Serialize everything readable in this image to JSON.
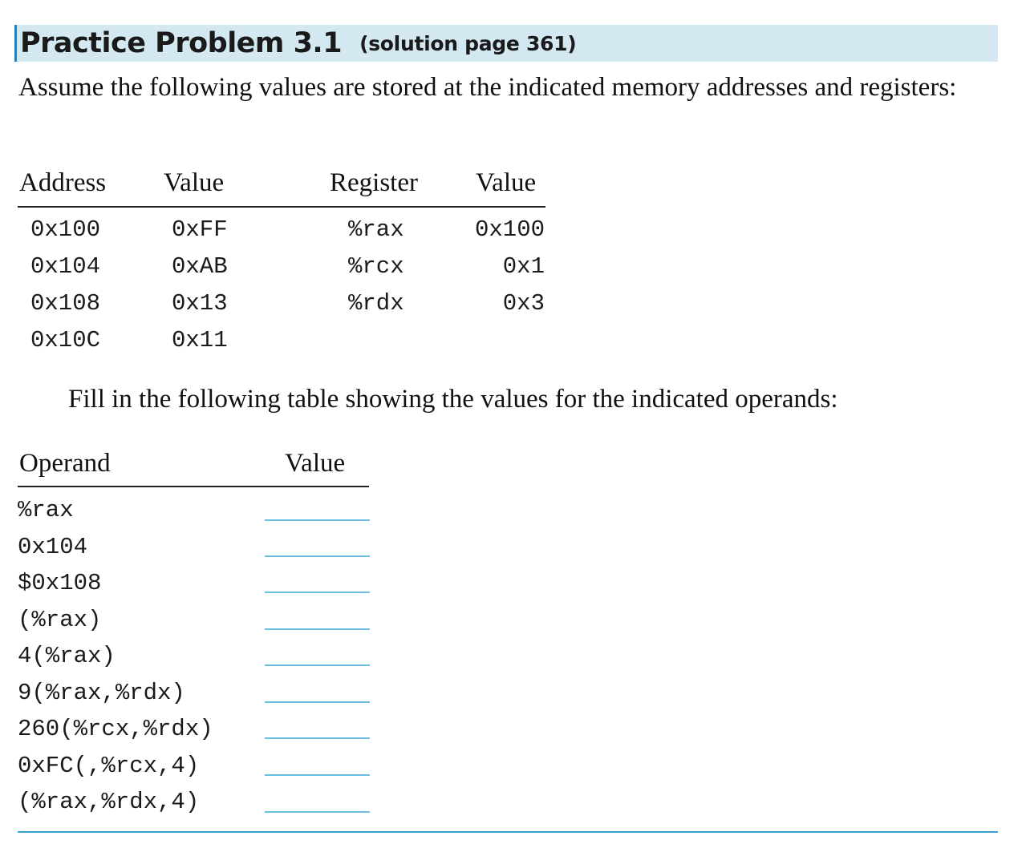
{
  "header": {
    "title": "Practice Problem 3.1",
    "reference": "(solution page 361)"
  },
  "intro_text": "Assume the following values are stored at the indicated memory addresses and registers:",
  "memory_table": {
    "headers": [
      "Address",
      "Value"
    ],
    "rows": [
      [
        "0x100",
        "0xFF"
      ],
      [
        "0x104",
        "0xAB"
      ],
      [
        "0x108",
        "0x13"
      ],
      [
        "0x10C",
        "0x11"
      ]
    ]
  },
  "register_table": {
    "headers": [
      "Register",
      "Value"
    ],
    "rows": [
      [
        "%rax",
        "0x100"
      ],
      [
        "%rcx",
        "0x1"
      ],
      [
        "%rdx",
        "0x3"
      ]
    ]
  },
  "fill_instruction": "Fill in the following table showing the values for the indicated operands:",
  "operand_table": {
    "headers": [
      "Operand",
      "Value"
    ],
    "operands": [
      "%rax",
      "0x104",
      "$0x108",
      "(%rax)",
      "4(%rax)",
      "9(%rax,%rdx)",
      "260(%rcx,%rdx)",
      "0xFC(,%rcx,4)",
      "(%rax,%rdx,4)"
    ]
  },
  "colors": {
    "header_background": "#d3e8f1",
    "header_accent": "#1c86c3",
    "answer_line": "#6ebde2",
    "bottom_rule": "#3aa0d2"
  }
}
